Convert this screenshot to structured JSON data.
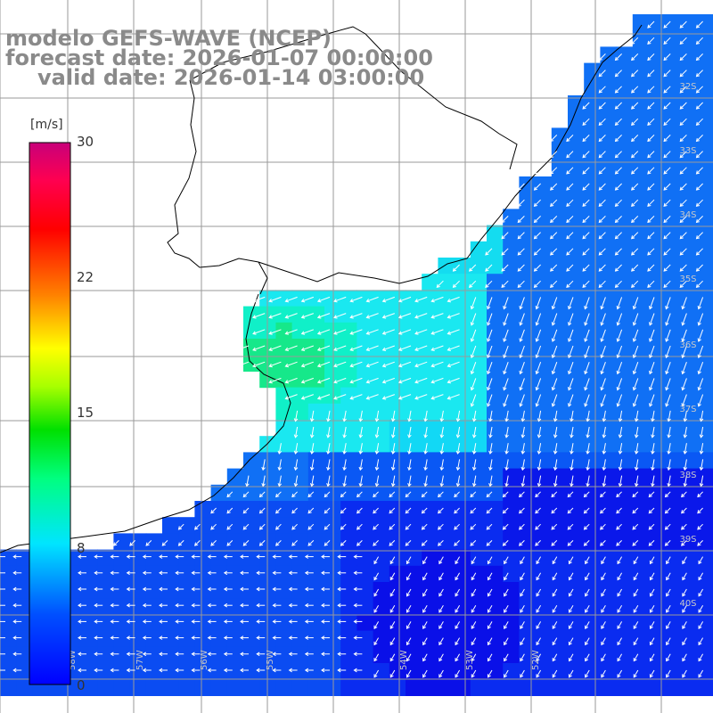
{
  "title": {
    "line1": "modelo GEFS-WAVE (NCEP)",
    "line2": "forecast date: 2026-01-07 00:00:00",
    "line3": "valid date: 2026-01-14 03:00:00"
  },
  "colorbar": {
    "unit": "[m/s]",
    "ticks": [
      "30",
      "22",
      "15",
      "8",
      "0"
    ],
    "min": 0,
    "max": 30
  },
  "map": {
    "lat_labels": [
      "32S",
      "33S",
      "34S",
      "35S",
      "36S",
      "37S",
      "38S",
      "39S",
      "40S"
    ],
    "lon_labels": [
      "58W",
      "57W",
      "56W",
      "55W",
      "54W",
      "53W",
      "52W"
    ],
    "colors": {
      "land": "#ffffff",
      "grid": "#9a9a9a",
      "arrows": "#ffffff",
      "coast": "#000000"
    }
  }
}
